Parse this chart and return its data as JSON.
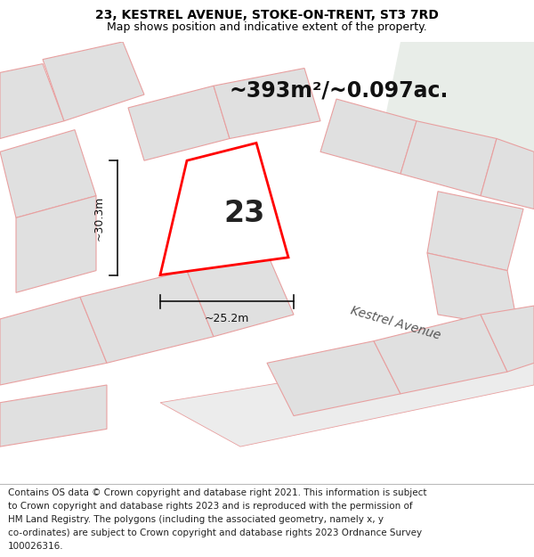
{
  "title": "23, KESTREL AVENUE, STOKE-ON-TRENT, ST3 7RD",
  "subtitle": "Map shows position and indicative extent of the property.",
  "area_text": "~393m²/~0.097ac.",
  "plot_number": "23",
  "dim_width": "~25.2m",
  "dim_height": "~30.3m",
  "road_label": "Kestrel Avenue",
  "footer_lines": [
    "Contains OS data © Crown copyright and database right 2021. This information is subject",
    "to Crown copyright and database rights 2023 and is reproduced with the permission of",
    "HM Land Registry. The polygons (including the associated geometry, namely x, y",
    "co-ordinates) are subject to Crown copyright and database rights 2023 Ordnance Survey",
    "100026316."
  ],
  "bg_map_color": "#f5f5f5",
  "bg_green_color": "#e8ede8",
  "plot_fill_color": "#e8e8e8",
  "plot_edge_color": "#ff0000",
  "highlight_fill_color": "#ffffff",
  "neighbor_edge_color": "#e8a0a0",
  "neighbor_fill_color": "#e0e0e0",
  "title_fontsize": 10,
  "subtitle_fontsize": 9,
  "area_fontsize": 17,
  "plot_num_fontsize": 24,
  "dim_fontsize": 9,
  "road_fontsize": 10,
  "footer_fontsize": 7.5
}
